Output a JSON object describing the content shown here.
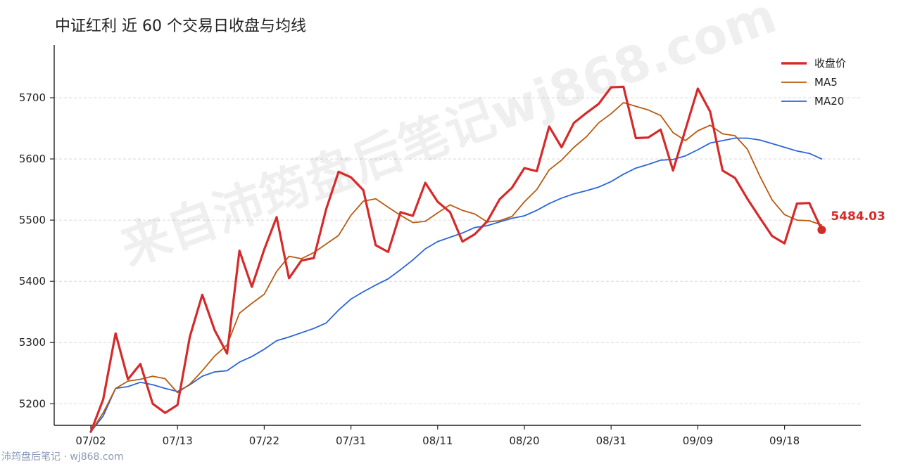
{
  "title": "中证红利 近 60 个交易日收盘与均线",
  "watermark": "来自沛筠盘后笔记wj868.com",
  "footer": "沛筠盘后笔记 · wj868.com",
  "chart_data": {
    "type": "line",
    "title": "中证红利 近 60 个交易日收盘与均线",
    "xlabel": "",
    "ylabel": "",
    "ylim": [
      5140,
      5750
    ],
    "x_tick_labels": [
      "07/02",
      "07/13",
      "07/22",
      "07/31",
      "08/11",
      "08/20",
      "08/31",
      "09/09",
      "09/18"
    ],
    "x_tick_indices": [
      0,
      7,
      14,
      21,
      28,
      35,
      42,
      49,
      56
    ],
    "y_ticks": [
      5200,
      5300,
      5400,
      5500,
      5600,
      5700
    ],
    "grid": true,
    "legend_position": "top-right",
    "last_value_label": "5484.03",
    "colors": {
      "close": "#d62a2a",
      "ma5": "#b85a10",
      "ma20": "#2b65d9"
    },
    "series": [
      {
        "name": "收盘价",
        "key": "close",
        "values": [
          5154,
          5207,
          5315,
          5240,
          5265,
          5200,
          5185,
          5198,
          5310,
          5378,
          5320,
          5282,
          5450,
          5391,
          5452,
          5505,
          5405,
          5434,
          5438,
          5518,
          5579,
          5570,
          5549,
          5459,
          5448,
          5513,
          5507,
          5561,
          5530,
          5513,
          5465,
          5477,
          5498,
          5534,
          5553,
          5585,
          5580,
          5653,
          5619,
          5659,
          5675,
          5690,
          5717,
          5718,
          5634,
          5635,
          5648,
          5581,
          5648,
          5715,
          5677,
          5581,
          5569,
          5535,
          5504,
          5474,
          5462,
          5527,
          5528,
          5484.03
        ]
      },
      {
        "name": "MA5",
        "key": "ma5",
        "values": [
          5154,
          5185,
          5225,
          5237,
          5240,
          5245,
          5241,
          5218,
          5232,
          5254,
          5278,
          5296,
          5348,
          5364,
          5379,
          5416,
          5441,
          5437,
          5447,
          5461,
          5475,
          5508,
          5531,
          5535,
          5521,
          5508,
          5496,
          5498,
          5512,
          5525,
          5516,
          5510,
          5497,
          5499,
          5506,
          5530,
          5550,
          5582,
          5598,
          5619,
          5636,
          5659,
          5674,
          5692,
          5686,
          5680,
          5671,
          5643,
          5630,
          5646,
          5655,
          5641,
          5638,
          5616,
          5572,
          5533,
          5509,
          5500,
          5499,
          5492
        ]
      },
      {
        "name": "MA20",
        "key": "ma20",
        "values": [
          5154,
          5180,
          5225,
          5228,
          5235,
          5231,
          5225,
          5220,
          5231,
          5245,
          5252,
          5254,
          5268,
          5277,
          5289,
          5303,
          5309,
          5316,
          5323,
          5332,
          5353,
          5371,
          5383,
          5394,
          5404,
          5419,
          5435,
          5453,
          5465,
          5472,
          5479,
          5488,
          5491,
          5497,
          5503,
          5507,
          5516,
          5527,
          5536,
          5543,
          5548,
          5554,
          5563,
          5575,
          5585,
          5591,
          5598,
          5599,
          5605,
          5615,
          5626,
          5630,
          5634,
          5634,
          5631,
          5625,
          5619,
          5613,
          5609,
          5600
        ]
      }
    ]
  }
}
